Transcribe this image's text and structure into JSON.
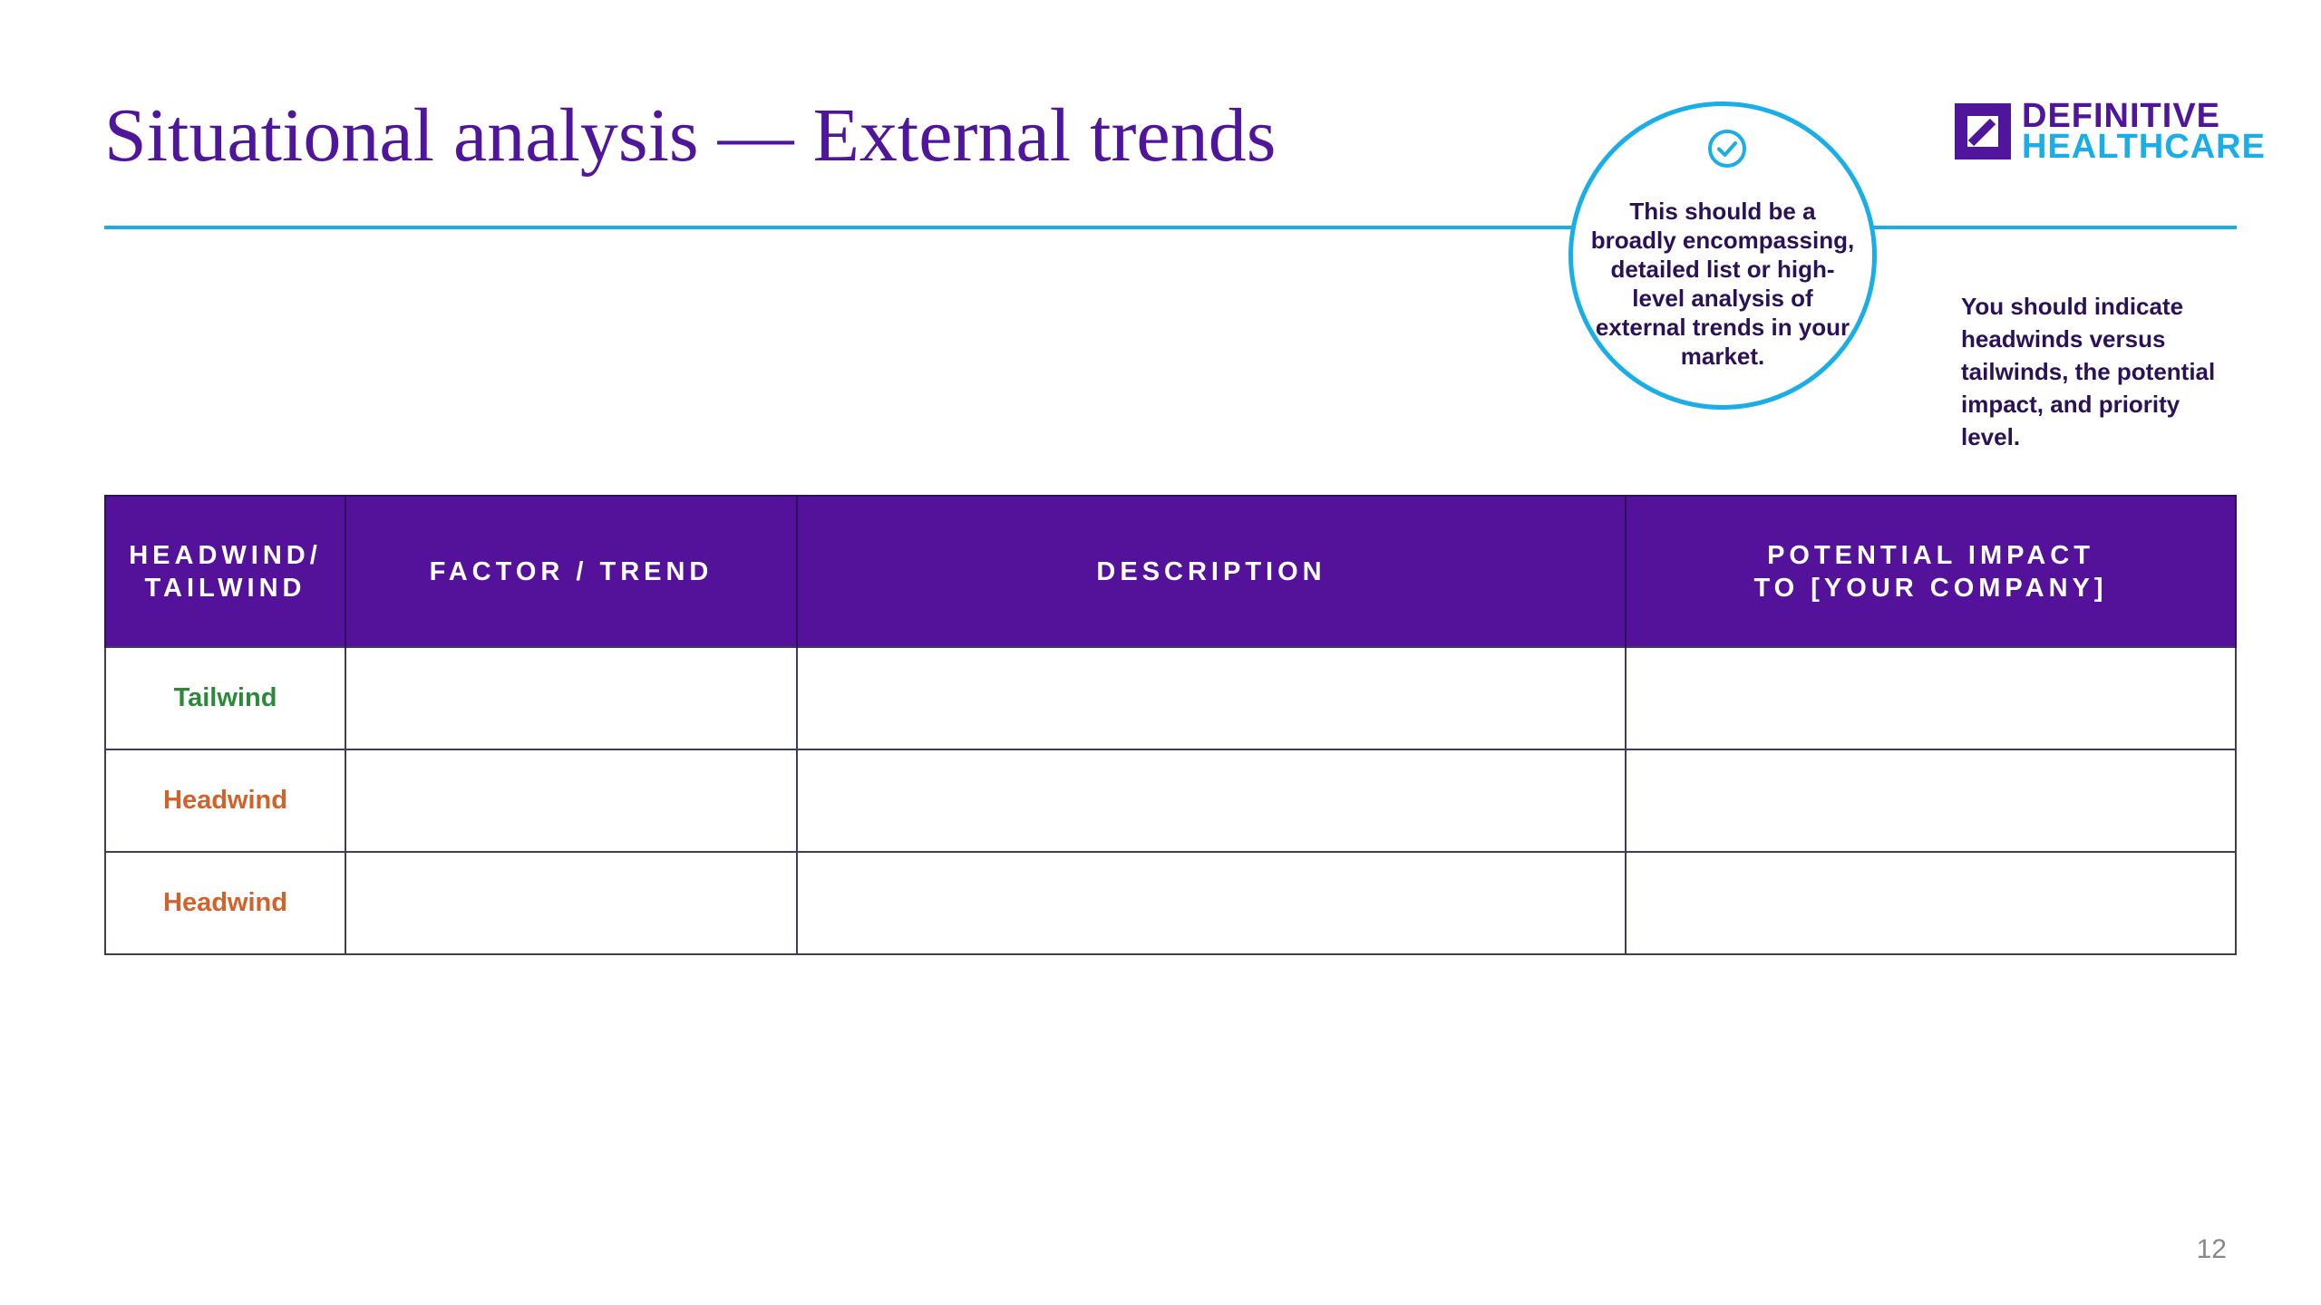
{
  "slide": {
    "title": "Situational analysis — External trends",
    "page_number": "12"
  },
  "callout": {
    "icon": "checkmark-circle-icon",
    "text": "This should be a broadly encompassing, detailed list or high-level analysis of external trends in your market."
  },
  "logo": {
    "line1": "DEFINITIVE",
    "line2": "HEALTHCARE"
  },
  "side_note": "You should indicate headwinds versus tailwinds, the potential impact, and priority level.",
  "table": {
    "headers": [
      "HEADWIND/\nTAILWIND",
      "FACTOR / TREND",
      "DESCRIPTION",
      "POTENTIAL IMPACT\nTO [YOUR COMPANY]"
    ],
    "rows": [
      {
        "type": "Tailwind",
        "factor": "",
        "description": "",
        "impact": ""
      },
      {
        "type": "Headwind",
        "factor": "",
        "description": "",
        "impact": ""
      },
      {
        "type": "Headwind",
        "factor": "",
        "description": "",
        "impact": ""
      }
    ]
  },
  "colors": {
    "brand_purple": "#4f169b",
    "header_purple": "#54129a",
    "accent_blue": "#1aaee8",
    "tailwind_green": "#2a8a3a",
    "headwind_orange": "#d3612a"
  }
}
